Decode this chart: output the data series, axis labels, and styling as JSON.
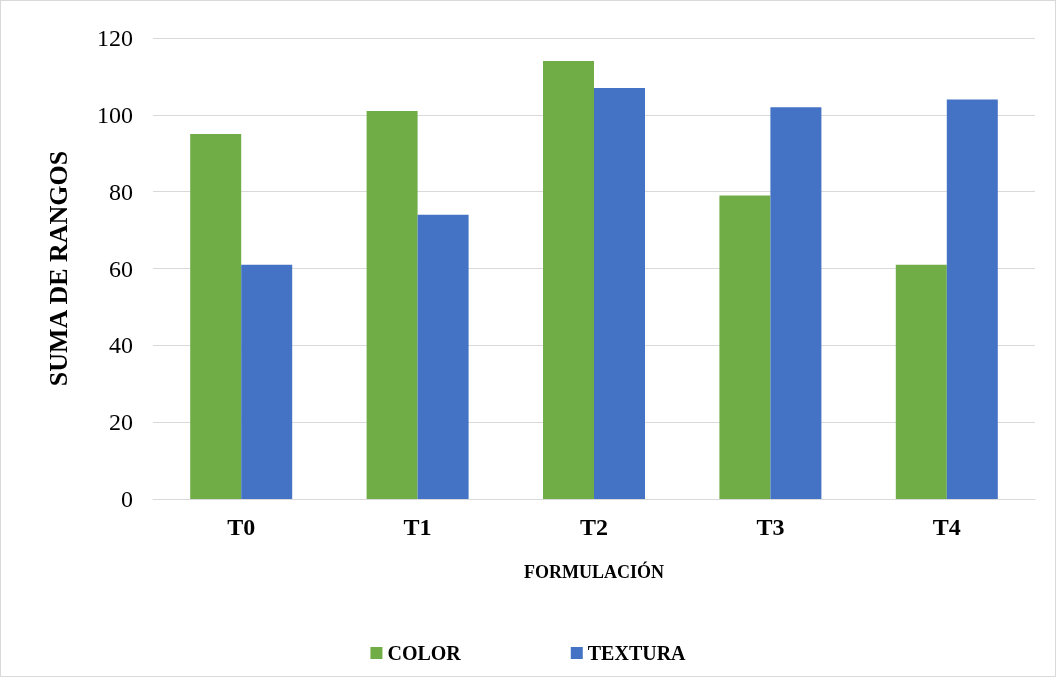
{
  "chart_data": {
    "type": "bar",
    "xlabel": "FORMULACIÓN",
    "ylabel": "SUMA DE RANGOS",
    "categories": [
      "T0",
      "T1",
      "T2",
      "T3",
      "T4"
    ],
    "series": [
      {
        "name": "COLOR",
        "color": "#70ad47",
        "values": [
          95,
          101,
          114,
          79,
          61
        ]
      },
      {
        "name": "TEXTURA",
        "color": "#4472c4",
        "values": [
          61,
          74,
          107,
          102,
          104
        ]
      }
    ],
    "ylim": [
      0,
      120
    ],
    "yticks": [
      0,
      20,
      40,
      60,
      80,
      100,
      120
    ],
    "grid": "y",
    "legend": "bottom"
  }
}
